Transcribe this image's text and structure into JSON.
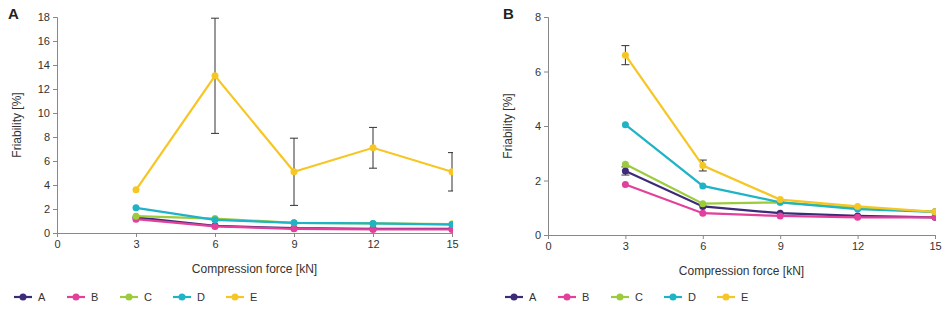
{
  "chart_data": [
    {
      "type": "line",
      "title": "A",
      "x_label": "Compression force [kN]",
      "y_label": "Friability [%]",
      "x": [
        3,
        6,
        9,
        12,
        15
      ],
      "xlim": [
        0,
        15
      ],
      "xticks": [
        0,
        3,
        6,
        9,
        12,
        15
      ],
      "ylim": [
        0,
        18
      ],
      "yticks": [
        0,
        2,
        4,
        6,
        8,
        10,
        12,
        14,
        16,
        18
      ],
      "marker": "circle",
      "legend": "bottom",
      "series": [
        {
          "name": "A",
          "color": "#3d2a78",
          "values": [
            1.3,
            0.6,
            0.4,
            0.35,
            0.35
          ]
        },
        {
          "name": "B",
          "color": "#e2409b",
          "values": [
            1.15,
            0.55,
            0.35,
            0.3,
            0.3
          ]
        },
        {
          "name": "C",
          "color": "#9ccb3b",
          "values": [
            1.4,
            1.2,
            0.85,
            0.8,
            0.75
          ]
        },
        {
          "name": "D",
          "color": "#1fb3c6",
          "values": [
            2.1,
            1.1,
            0.85,
            0.8,
            0.7
          ]
        },
        {
          "name": "E",
          "color": "#f6c624",
          "values": [
            3.6,
            13.1,
            5.1,
            7.1,
            5.1
          ],
          "errors": [
            null,
            4.8,
            2.8,
            1.7,
            1.6
          ]
        }
      ]
    },
    {
      "type": "line",
      "title": "B",
      "x_label": "Compression force [kN]",
      "y_label": "Friability [%]",
      "x": [
        3,
        6,
        9,
        12,
        15
      ],
      "xlim": [
        0,
        15
      ],
      "xticks": [
        0,
        3,
        6,
        9,
        12,
        15
      ],
      "ylim": [
        0,
        8
      ],
      "yticks": [
        0,
        2,
        4,
        6,
        8
      ],
      "marker": "circle",
      "legend": "bottom",
      "series": [
        {
          "name": "A",
          "color": "#3d2a78",
          "values": [
            2.35,
            1.05,
            0.8,
            0.7,
            0.65
          ],
          "errors": [
            0.15,
            null,
            null,
            null,
            null
          ]
        },
        {
          "name": "B",
          "color": "#e2409b",
          "values": [
            1.85,
            0.8,
            0.7,
            0.65,
            0.65
          ]
        },
        {
          "name": "C",
          "color": "#9ccb3b",
          "values": [
            2.6,
            1.15,
            1.2,
            1.0,
            0.85
          ]
        },
        {
          "name": "D",
          "color": "#1fb3c6",
          "values": [
            4.05,
            1.8,
            1.2,
            0.95,
            0.85
          ]
        },
        {
          "name": "E",
          "color": "#f6c624",
          "values": [
            6.6,
            2.55,
            1.3,
            1.05,
            0.85
          ],
          "errors": [
            0.35,
            0.2,
            null,
            null,
            null
          ]
        }
      ]
    }
  ]
}
